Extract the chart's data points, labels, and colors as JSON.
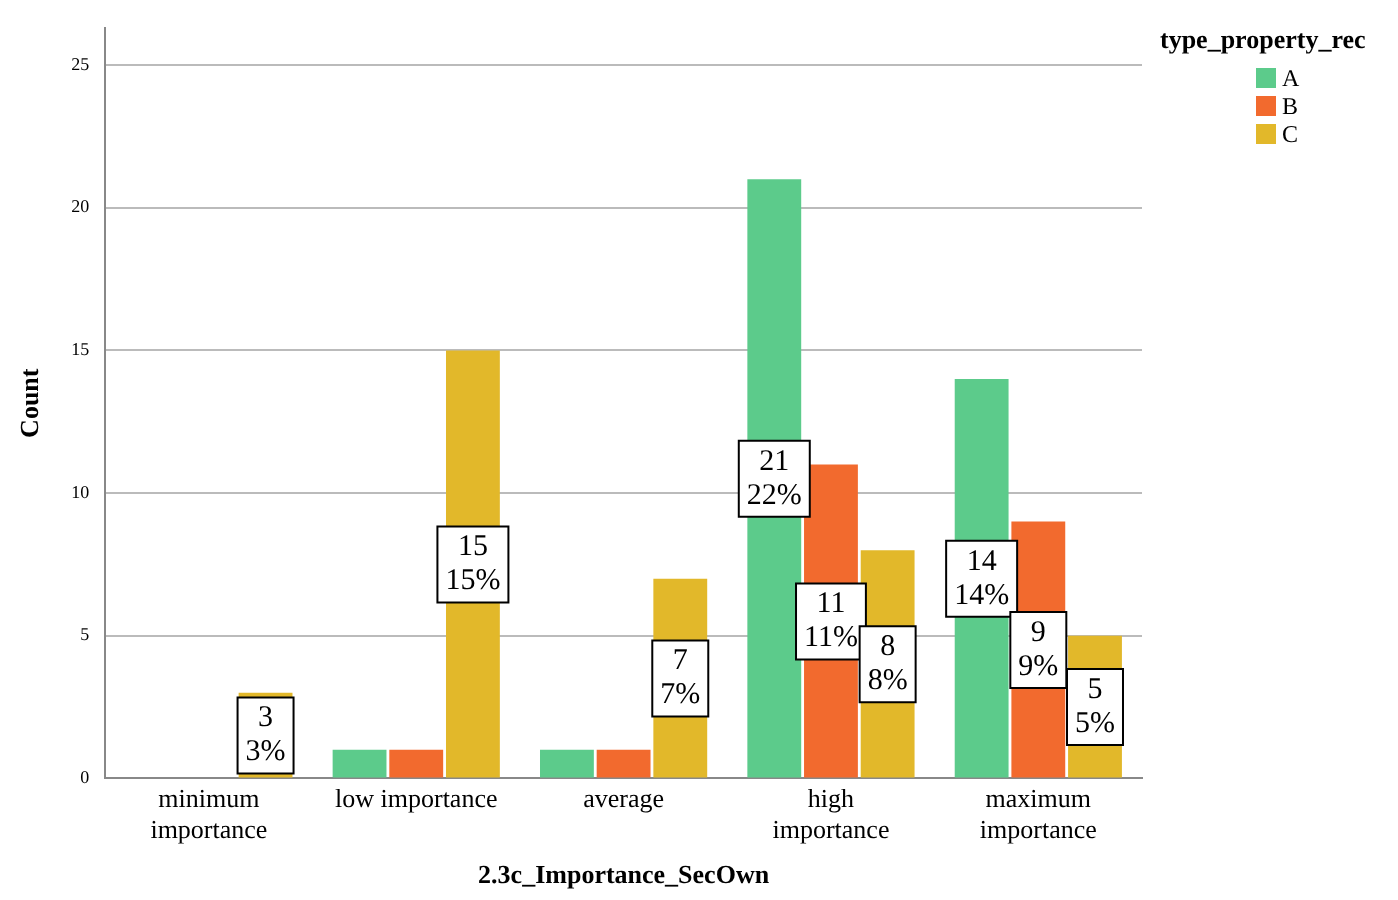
{
  "chart_data": {
    "type": "bar",
    "categories": [
      "minimum importance",
      "low importance",
      "average",
      "high importance",
      "maximum importance"
    ],
    "series": [
      {
        "name": "A",
        "color": "#5ccb8b",
        "values": [
          0,
          1,
          1,
          21,
          14
        ],
        "value_labels": [
          null,
          null,
          null,
          "21\n22%",
          "14\n14%"
        ]
      },
      {
        "name": "B",
        "color": "#f26a2e",
        "values": [
          0,
          1,
          1,
          11,
          9
        ],
        "value_labels": [
          null,
          null,
          null,
          "11\n11%",
          "9\n9%"
        ]
      },
      {
        "name": "C",
        "color": "#e2b82a",
        "values": [
          3,
          15,
          7,
          8,
          5
        ],
        "value_labels": [
          "3\n3%",
          "15\n15%",
          "7\n7%",
          "8\n8%",
          "5\n5%"
        ]
      }
    ],
    "xlabel": "2.3c_Importance_SecOwn",
    "ylabel": "Count",
    "legend_title": "type_property_rec",
    "legend": "top right",
    "ylim": [
      0,
      26.3
    ],
    "yticks": [
      0,
      5,
      10,
      15,
      20,
      25
    ],
    "grid": "y"
  }
}
